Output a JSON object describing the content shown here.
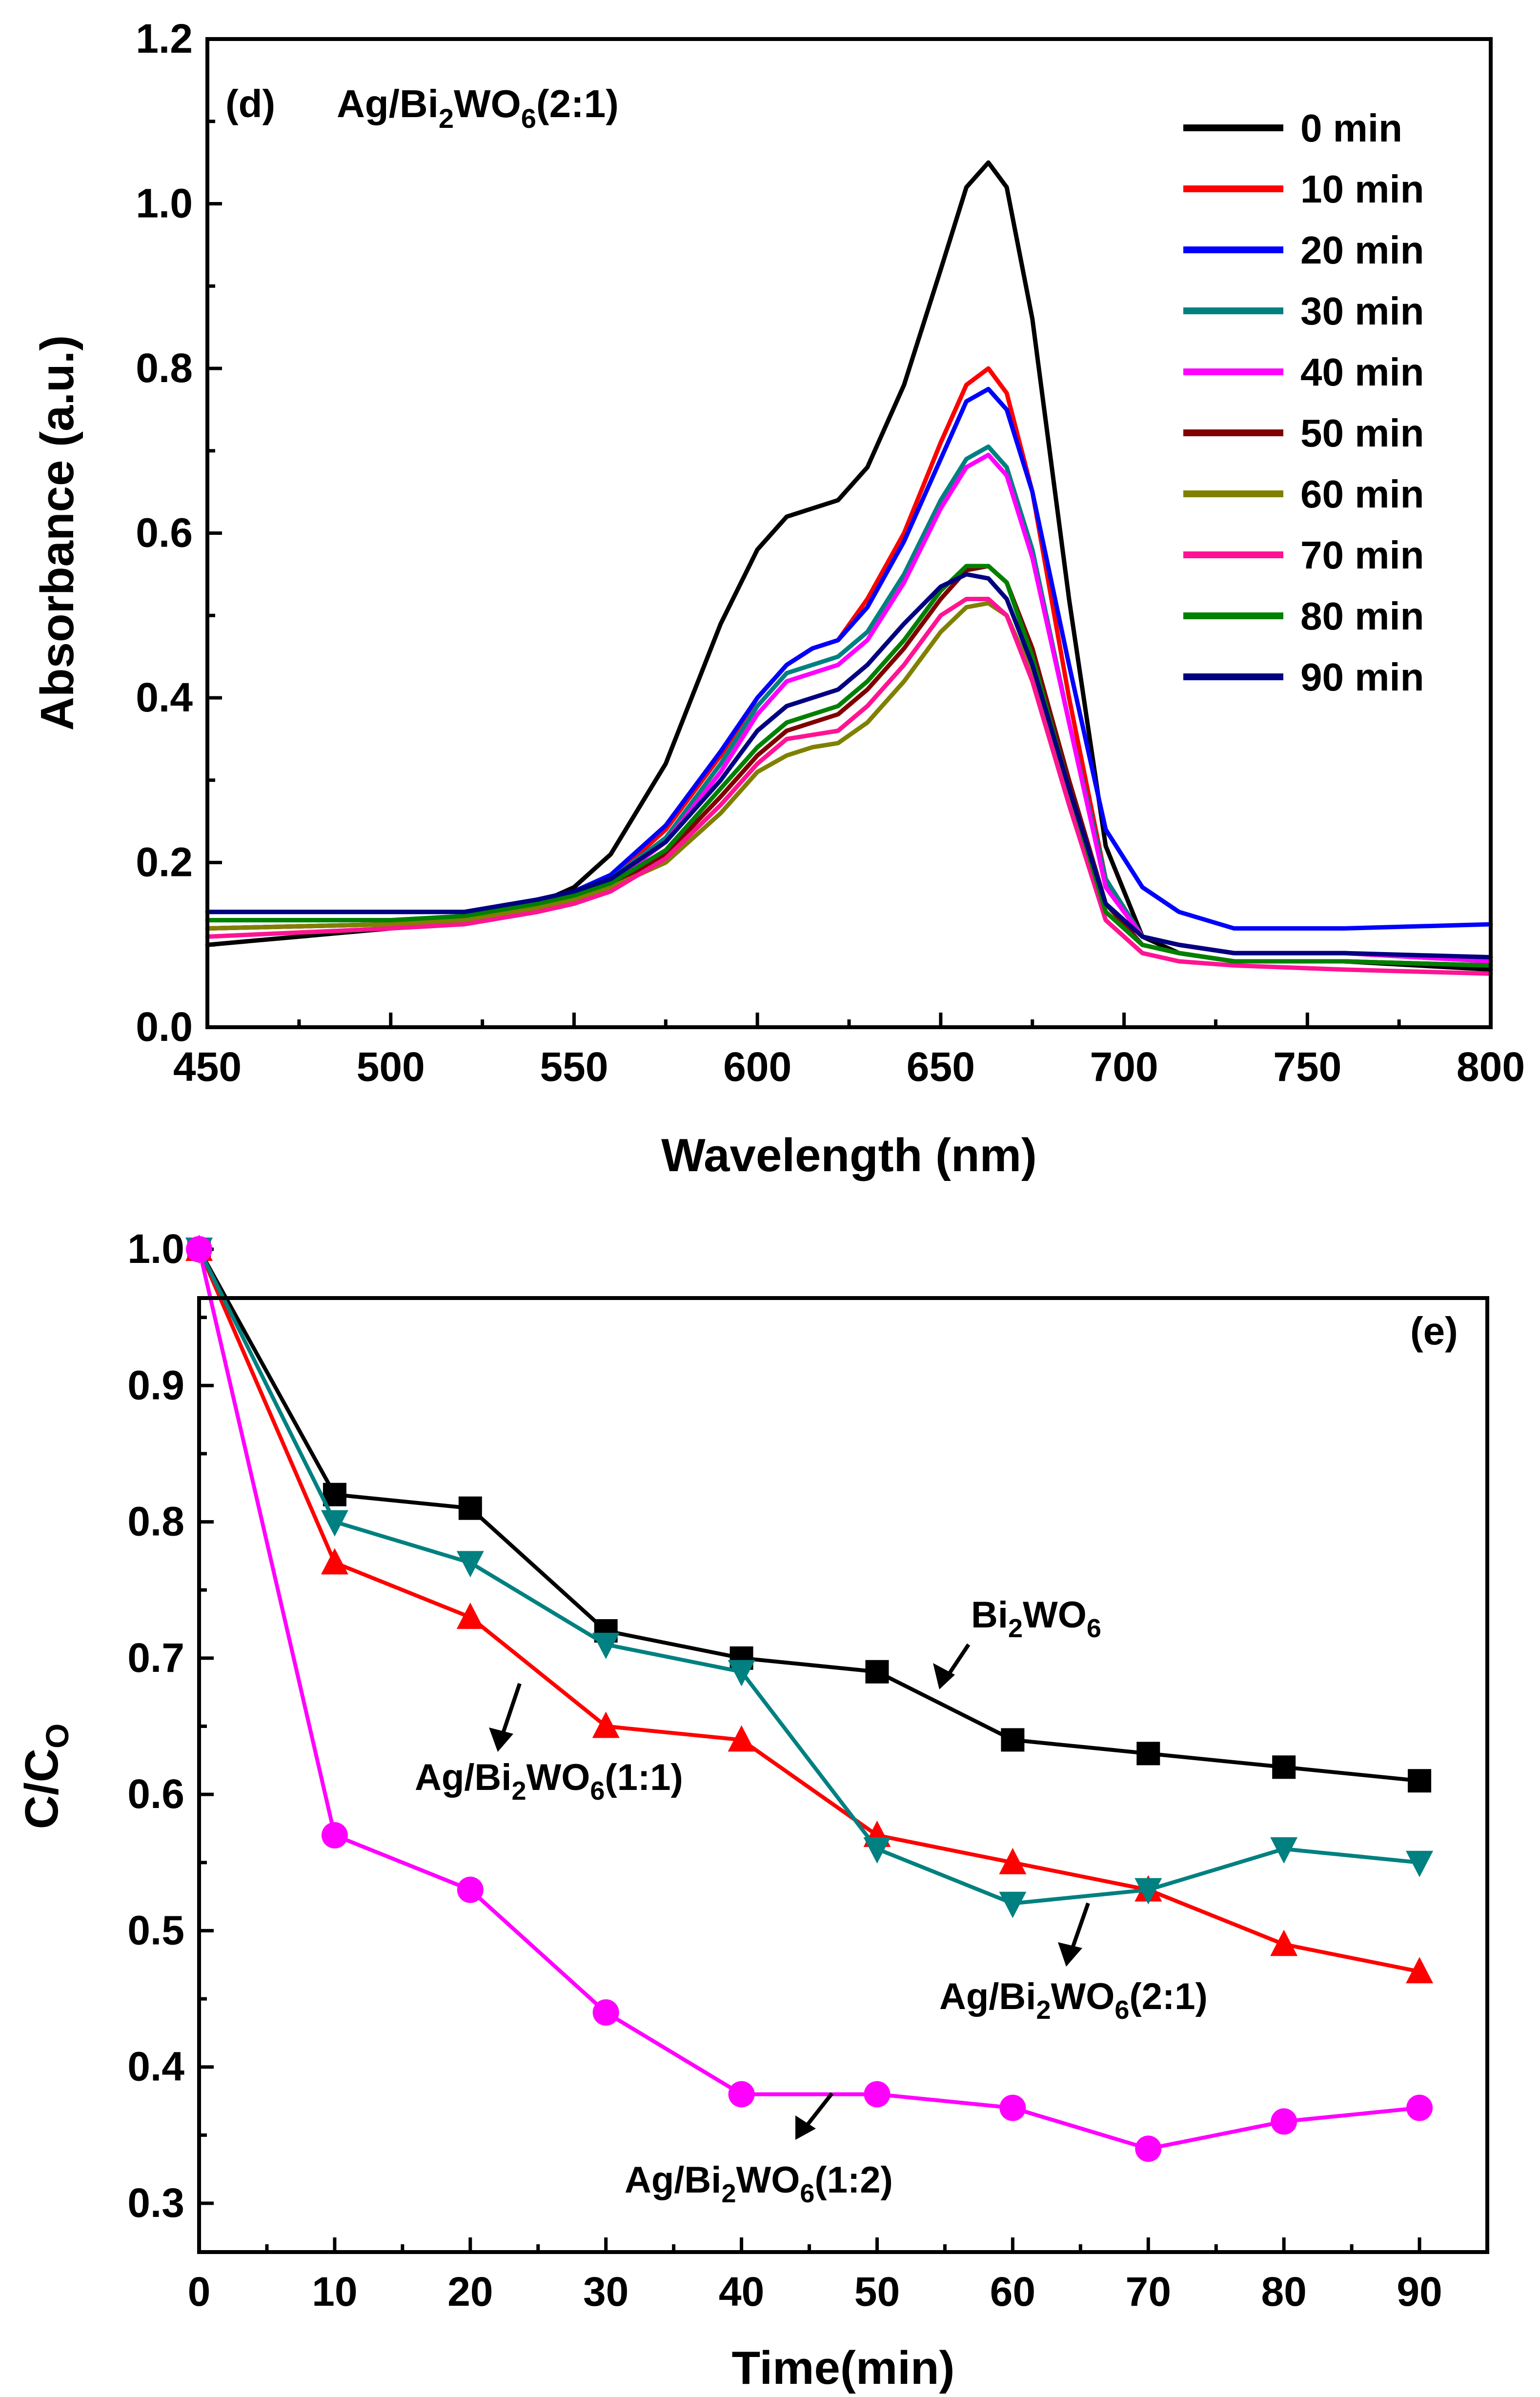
{
  "chart_data": [
    {
      "type": "line",
      "title": "",
      "panel_tag": "(d)",
      "sample_label": {
        "prefix": "Ag/Bi",
        "sub1": "2",
        "mid": "WO",
        "sub2": "6",
        "suffix": "(2:1)"
      },
      "xlabel": "Wavelength (nm)",
      "ylabel": "Absorbance (a.u.)",
      "xlim": [
        450,
        800
      ],
      "ylim": [
        0.0,
        1.2
      ],
      "xticks": [
        "450",
        "500",
        "550",
        "600",
        "650",
        "700",
        "750",
        "800"
      ],
      "yticks": [
        "0.0",
        "0.2",
        "0.4",
        "0.6",
        "0.8",
        "1.0",
        "1.2"
      ],
      "legend_position": "top-right",
      "x": [
        450,
        500,
        520,
        540,
        550,
        560,
        575,
        590,
        600,
        608,
        615,
        622,
        630,
        640,
        650,
        657,
        663,
        668,
        675,
        685,
        695,
        705,
        715,
        730,
        760,
        800
      ],
      "series": [
        {
          "name": "0 min",
          "color": "#000000",
          "values": [
            0.1,
            0.12,
            0.13,
            0.15,
            0.17,
            0.21,
            0.32,
            0.49,
            0.58,
            0.62,
            0.63,
            0.64,
            0.68,
            0.78,
            0.92,
            1.02,
            1.05,
            1.02,
            0.86,
            0.52,
            0.22,
            0.11,
            0.09,
            0.08,
            0.08,
            0.07
          ]
        },
        {
          "name": "10 min",
          "color": "#ff0000",
          "values": [
            0.12,
            0.125,
            0.13,
            0.145,
            0.16,
            0.18,
            0.24,
            0.33,
            0.4,
            0.44,
            0.46,
            0.47,
            0.52,
            0.6,
            0.71,
            0.78,
            0.8,
            0.77,
            0.65,
            0.4,
            0.18,
            0.11,
            0.1,
            0.09,
            0.09,
            0.08
          ]
        },
        {
          "name": "20 min",
          "color": "#0000ff",
          "values": [
            0.14,
            0.14,
            0.14,
            0.155,
            0.165,
            0.185,
            0.245,
            0.335,
            0.4,
            0.44,
            0.46,
            0.47,
            0.51,
            0.59,
            0.69,
            0.76,
            0.775,
            0.75,
            0.65,
            0.44,
            0.24,
            0.17,
            0.14,
            0.12,
            0.12,
            0.125
          ]
        },
        {
          "name": "30 min",
          "color": "#008080",
          "values": [
            0.13,
            0.13,
            0.135,
            0.15,
            0.16,
            0.18,
            0.23,
            0.32,
            0.39,
            0.43,
            0.44,
            0.45,
            0.48,
            0.55,
            0.64,
            0.69,
            0.705,
            0.68,
            0.58,
            0.37,
            0.18,
            0.11,
            0.1,
            0.09,
            0.09,
            0.08
          ]
        },
        {
          "name": "40 min",
          "color": "#ff00ff",
          "values": [
            0.12,
            0.125,
            0.13,
            0.145,
            0.155,
            0.175,
            0.225,
            0.31,
            0.38,
            0.42,
            0.43,
            0.44,
            0.47,
            0.54,
            0.63,
            0.68,
            0.695,
            0.67,
            0.57,
            0.37,
            0.17,
            0.11,
            0.1,
            0.09,
            0.09,
            0.08
          ]
        },
        {
          "name": "50 min",
          "color": "#800000",
          "values": [
            0.12,
            0.125,
            0.13,
            0.145,
            0.155,
            0.17,
            0.21,
            0.28,
            0.33,
            0.36,
            0.37,
            0.38,
            0.41,
            0.46,
            0.52,
            0.555,
            0.56,
            0.54,
            0.46,
            0.3,
            0.15,
            0.1,
            0.09,
            0.08,
            0.08,
            0.075
          ]
        },
        {
          "name": "60 min",
          "color": "#808000",
          "values": [
            0.12,
            0.125,
            0.13,
            0.145,
            0.155,
            0.17,
            0.2,
            0.26,
            0.31,
            0.33,
            0.34,
            0.345,
            0.37,
            0.42,
            0.48,
            0.51,
            0.515,
            0.5,
            0.43,
            0.28,
            0.14,
            0.1,
            0.09,
            0.08,
            0.08,
            0.075
          ]
        },
        {
          "name": "70 min",
          "color": "#ff1493",
          "values": [
            0.11,
            0.12,
            0.125,
            0.14,
            0.15,
            0.165,
            0.205,
            0.27,
            0.32,
            0.35,
            0.355,
            0.36,
            0.39,
            0.44,
            0.5,
            0.52,
            0.52,
            0.5,
            0.42,
            0.27,
            0.13,
            0.09,
            0.08,
            0.075,
            0.07,
            0.065
          ]
        },
        {
          "name": "80 min",
          "color": "#008000",
          "values": [
            0.13,
            0.13,
            0.135,
            0.15,
            0.16,
            0.175,
            0.215,
            0.29,
            0.34,
            0.37,
            0.38,
            0.39,
            0.42,
            0.47,
            0.53,
            0.56,
            0.56,
            0.54,
            0.45,
            0.29,
            0.14,
            0.1,
            0.09,
            0.08,
            0.08,
            0.075
          ]
        },
        {
          "name": "90 min",
          "color": "#000080",
          "values": [
            0.14,
            0.14,
            0.14,
            0.155,
            0.165,
            0.18,
            0.225,
            0.3,
            0.36,
            0.39,
            0.4,
            0.41,
            0.44,
            0.49,
            0.535,
            0.55,
            0.545,
            0.52,
            0.44,
            0.29,
            0.15,
            0.11,
            0.1,
            0.09,
            0.09,
            0.085
          ]
        }
      ]
    },
    {
      "type": "line",
      "title": "",
      "panel_tag": "(e)",
      "xlabel": "Time(min)",
      "ylabel": {
        "main": "C/C",
        "sub": "O"
      },
      "xlim": [
        0,
        95
      ],
      "ylim": [
        0.3,
        1.0
      ],
      "xticks": [
        "0",
        "10",
        "20",
        "30",
        "40",
        "50",
        "60",
        "70",
        "80",
        "90"
      ],
      "yticks": [
        "0.3",
        "0.4",
        "0.5",
        "0.6",
        "0.7",
        "0.8",
        "0.9",
        "1.0"
      ],
      "x": [
        0,
        10,
        20,
        30,
        40,
        50,
        60,
        70,
        80,
        90
      ],
      "series": [
        {
          "name": "Bi2WO6",
          "marker": "square",
          "color": "#000000",
          "values": [
            1.0,
            0.82,
            0.81,
            0.72,
            0.7,
            0.69,
            0.64,
            0.63,
            0.62,
            0.61
          ]
        },
        {
          "name": "Ag/Bi2WO6(1:1)",
          "marker": "triangle-up",
          "color": "#ff0000",
          "values": [
            1.0,
            0.77,
            0.73,
            0.65,
            0.64,
            0.57,
            0.55,
            0.53,
            0.49,
            0.47
          ]
        },
        {
          "name": "Ag/Bi2WO6(2:1)",
          "marker": "triangle-down",
          "color": "#008080",
          "values": [
            1.0,
            0.8,
            0.77,
            0.71,
            0.69,
            0.56,
            0.52,
            0.53,
            0.56,
            0.55
          ]
        },
        {
          "name": "Ag/Bi2WO6(1:2)",
          "marker": "circle",
          "color": "#ff00ff",
          "values": [
            1.0,
            0.57,
            0.53,
            0.44,
            0.38,
            0.38,
            0.37,
            0.34,
            0.36,
            0.37
          ]
        }
      ],
      "annotations": [
        {
          "prefix": "Bi",
          "sub1": "2",
          "mid": "WO",
          "sub2": "6",
          "suffix": ""
        },
        {
          "prefix": "Ag/Bi",
          "sub1": "2",
          "mid": "WO",
          "sub2": "6",
          "suffix": "(1:1)"
        },
        {
          "prefix": "Ag/Bi",
          "sub1": "2",
          "mid": "WO",
          "sub2": "6",
          "suffix": "(2:1)"
        },
        {
          "prefix": "Ag/Bi",
          "sub1": "2",
          "mid": "WO",
          "sub2": "6",
          "suffix": "(1:2)"
        }
      ]
    }
  ]
}
